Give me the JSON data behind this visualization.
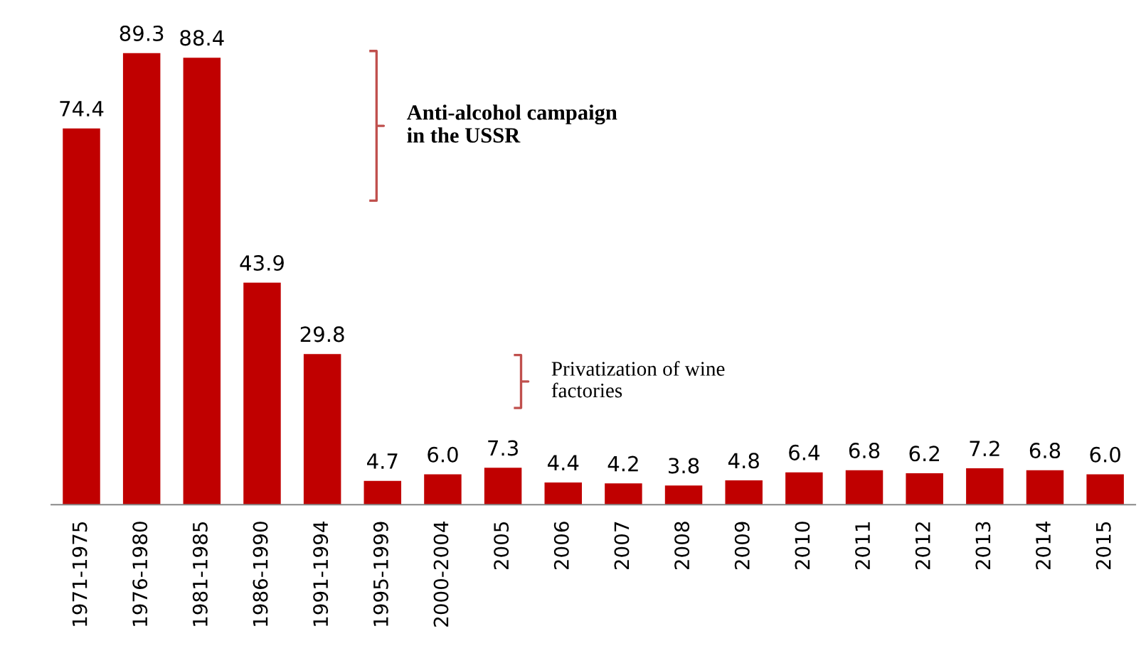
{
  "chart_data": {
    "type": "bar",
    "categories": [
      "1971-1975",
      "1976-1980",
      "1981-1985",
      "1986-1990",
      "1991-1994",
      "1995-1999",
      "2000-2004",
      "2005",
      "2006",
      "2007",
      "2008",
      "2009",
      "2010",
      "2011",
      "2012",
      "2013",
      "2014",
      "2015"
    ],
    "values": [
      74.4,
      89.3,
      88.4,
      43.9,
      29.8,
      4.7,
      6.0,
      7.3,
      4.4,
      4.2,
      3.8,
      4.8,
      6.4,
      6.8,
      6.2,
      7.2,
      6.8,
      6.0
    ],
    "value_labels": [
      "74.4",
      "89.3",
      "88.4",
      "43.9",
      "29.8",
      "4.7",
      "6.0",
      "7.3",
      "4.4",
      "4.2",
      "3.8",
      "4.8",
      "6.4",
      "6.8",
      "6.2",
      "7.2",
      "6.8",
      "6.0"
    ],
    "color": "#c00000",
    "annotations": [
      "Anti-alcohol campaign\nin the USSR",
      "Privatization of wine\nfactories"
    ],
    "grid": false,
    "legend": false
  }
}
